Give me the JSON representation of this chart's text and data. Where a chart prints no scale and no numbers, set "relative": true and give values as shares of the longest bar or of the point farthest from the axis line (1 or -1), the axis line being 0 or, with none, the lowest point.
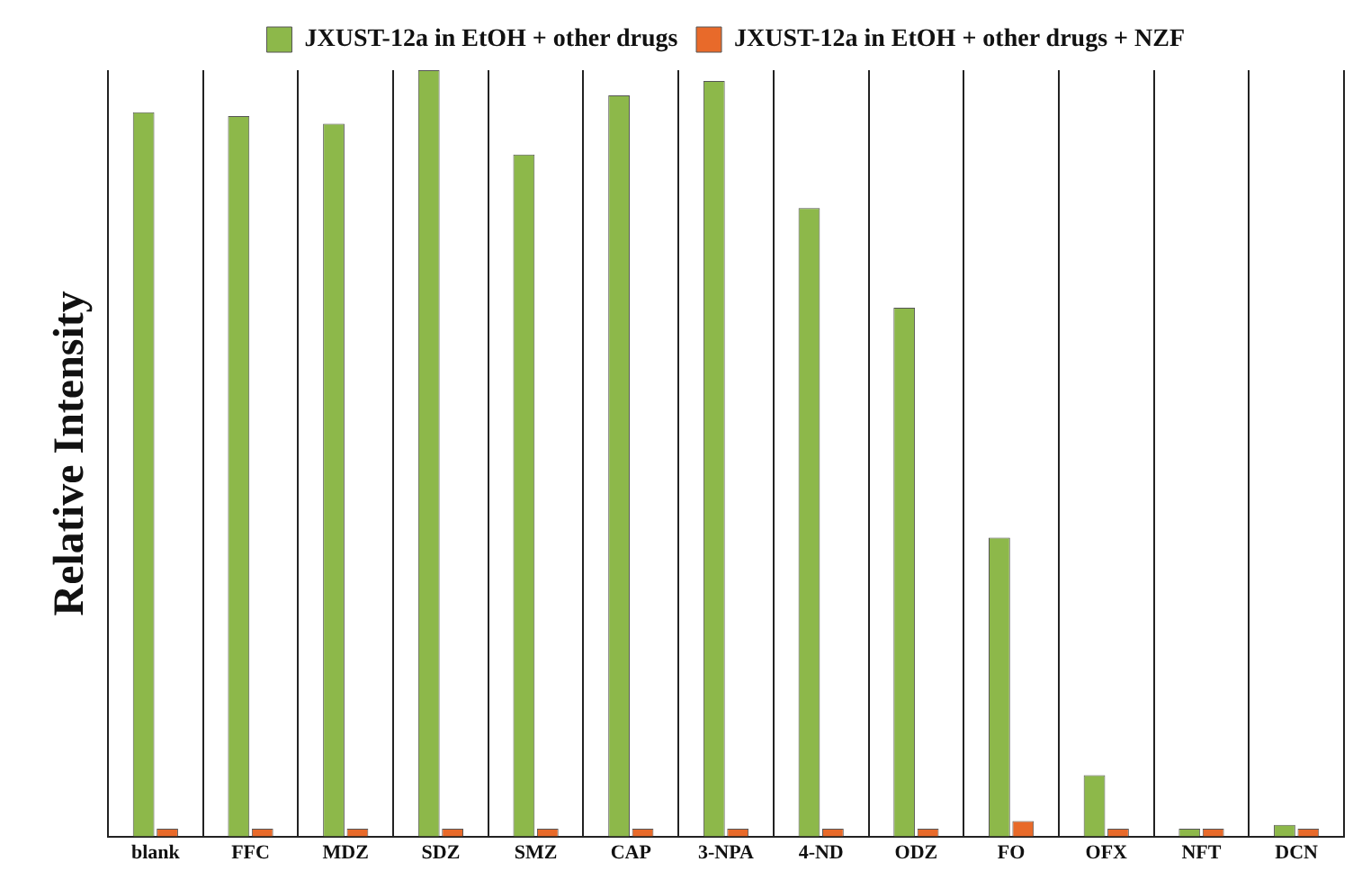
{
  "chart_data": {
    "type": "bar",
    "relative": true,
    "ylabel": "Relative Intensity",
    "categories": [
      "blank",
      "FFC",
      "MDZ",
      "SDZ",
      "SMZ",
      "CAP",
      "3-NPA",
      "4-ND",
      "ODZ",
      "FO",
      "OFX",
      "NFT",
      "DCN"
    ],
    "series": [
      {
        "name": "JXUST-12a in EtOH + other drugs",
        "color": "#8db84a",
        "values": [
          0.945,
          0.94,
          0.93,
          1,
          0.89,
          0.967,
          0.986,
          0.82,
          0.69,
          0.39,
          0.08,
          0.01,
          0.015
        ]
      },
      {
        "name": "JXUST-12a in EtOH + other drugs + NZF",
        "color": "#e86a2a",
        "values": [
          0.01,
          0.01,
          0.01,
          0.01,
          0.01,
          0.01,
          0.01,
          0.01,
          0.01,
          0.02,
          0.01,
          0.01,
          0.01
        ]
      }
    ],
    "grid": "x",
    "legend": "top"
  }
}
